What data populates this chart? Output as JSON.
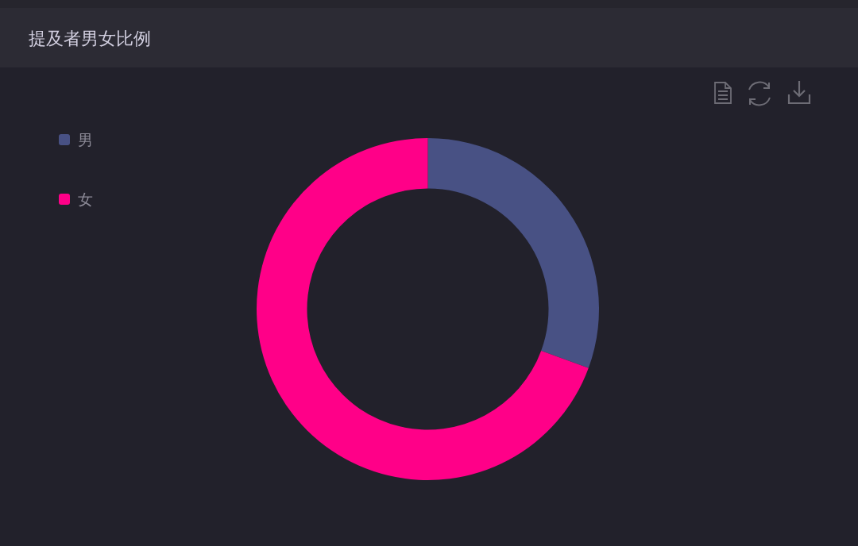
{
  "chart_data": {
    "type": "donut",
    "title": "提及者男女比例",
    "categories": [
      "男",
      "女"
    ],
    "values": [
      30.6,
      69.4
    ],
    "colors": [
      "#485184",
      "#ff0088"
    ],
    "legend": "top left"
  }
}
